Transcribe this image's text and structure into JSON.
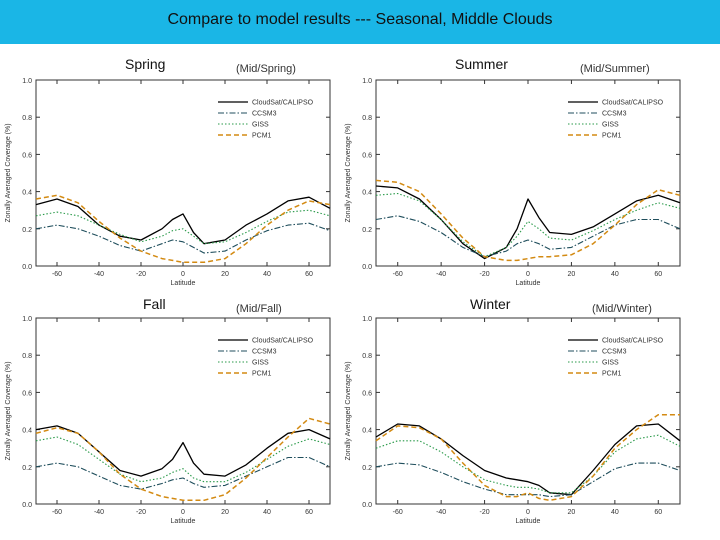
{
  "title": "Compare to model results --- Seasonal, Middle Clouds",
  "colors": {
    "titlebar": "#1ab6e6",
    "CloudSat/CALIPSO": "#000000",
    "CCSM3": "#1f4e5c",
    "GISS": "#2a9a4a",
    "PCM1": "#d38a12"
  },
  "chart_data": [
    {
      "type": "line",
      "season": "Spring",
      "panel_tag": "(Mid/Spring)",
      "xlabel": "Latitude",
      "ylabel": "Zonally Averaged Coverage (%)",
      "xlim": [
        -70,
        70
      ],
      "ylim": [
        0,
        1.0
      ],
      "xticks": [
        -60,
        -40,
        -20,
        0,
        20,
        40,
        60
      ],
      "xtick_labels": [
        "-60",
        "-40",
        "-20",
        "0",
        "20",
        "40",
        "60"
      ],
      "yticks": [
        0,
        0.2,
        0.4,
        0.6,
        0.8,
        1.0
      ],
      "ytick_labels": [
        "0.0",
        "0.2",
        "0.4",
        "0.6",
        "0.8",
        "1.0"
      ],
      "legend": [
        "CloudSat/CALIPSO",
        "CCSM3",
        "GISS",
        "PCM1"
      ],
      "x": [
        -70,
        -60,
        -50,
        -40,
        -30,
        -20,
        -10,
        -5,
        0,
        5,
        10,
        20,
        30,
        40,
        50,
        60,
        70
      ],
      "series": [
        {
          "name": "CloudSat/CALIPSO",
          "style": "solid",
          "values": [
            0.33,
            0.36,
            0.32,
            0.22,
            0.16,
            0.14,
            0.2,
            0.25,
            0.28,
            0.18,
            0.12,
            0.14,
            0.22,
            0.28,
            0.35,
            0.37,
            0.31
          ]
        },
        {
          "name": "CCSM3",
          "style": "dashdot",
          "values": [
            0.2,
            0.22,
            0.2,
            0.16,
            0.11,
            0.08,
            0.12,
            0.14,
            0.13,
            0.1,
            0.07,
            0.08,
            0.14,
            0.19,
            0.22,
            0.23,
            0.19
          ]
        },
        {
          "name": "GISS",
          "style": "dotted",
          "values": [
            0.27,
            0.29,
            0.27,
            0.22,
            0.17,
            0.13,
            0.16,
            0.19,
            0.2,
            0.16,
            0.12,
            0.13,
            0.18,
            0.24,
            0.29,
            0.3,
            0.27
          ]
        },
        {
          "name": "PCM1",
          "style": "dashed",
          "values": [
            0.36,
            0.38,
            0.34,
            0.24,
            0.15,
            0.08,
            0.04,
            0.03,
            0.02,
            0.02,
            0.02,
            0.04,
            0.12,
            0.22,
            0.3,
            0.35,
            0.33
          ]
        }
      ]
    },
    {
      "type": "line",
      "season": "Summer",
      "panel_tag": "(Mid/Summer)",
      "xlabel": "Latitude",
      "ylabel": "Zonally Averaged Coverage (%)",
      "xlim": [
        -70,
        70
      ],
      "ylim": [
        0,
        1.0
      ],
      "xticks": [
        -60,
        -40,
        -20,
        0,
        20,
        40,
        60
      ],
      "xtick_labels": [
        "-60",
        "-40",
        "-20",
        "0",
        "20",
        "40",
        "60"
      ],
      "yticks": [
        0,
        0.2,
        0.4,
        0.6,
        0.8,
        1.0
      ],
      "ytick_labels": [
        "0.0",
        "0.2",
        "0.4",
        "0.6",
        "0.8",
        "1.0"
      ],
      "legend": [
        "CloudSat/CALIPSO",
        "CCSM3",
        "GISS",
        "PCM1"
      ],
      "x": [
        -70,
        -60,
        -50,
        -40,
        -30,
        -20,
        -10,
        -5,
        0,
        5,
        10,
        20,
        30,
        40,
        50,
        60,
        70
      ],
      "series": [
        {
          "name": "CloudSat/CALIPSO",
          "style": "solid",
          "values": [
            0.43,
            0.42,
            0.36,
            0.25,
            0.12,
            0.04,
            0.1,
            0.2,
            0.36,
            0.26,
            0.18,
            0.17,
            0.21,
            0.28,
            0.35,
            0.38,
            0.34
          ]
        },
        {
          "name": "CCSM3",
          "style": "dashdot",
          "values": [
            0.25,
            0.27,
            0.24,
            0.18,
            0.1,
            0.05,
            0.08,
            0.12,
            0.14,
            0.12,
            0.09,
            0.1,
            0.16,
            0.22,
            0.25,
            0.25,
            0.2
          ]
        },
        {
          "name": "GISS",
          "style": "dotted",
          "values": [
            0.38,
            0.39,
            0.35,
            0.25,
            0.13,
            0.05,
            0.1,
            0.16,
            0.24,
            0.2,
            0.15,
            0.14,
            0.19,
            0.25,
            0.3,
            0.34,
            0.31
          ]
        },
        {
          "name": "PCM1",
          "style": "dashed",
          "values": [
            0.46,
            0.45,
            0.4,
            0.28,
            0.15,
            0.05,
            0.03,
            0.03,
            0.04,
            0.05,
            0.05,
            0.06,
            0.12,
            0.22,
            0.33,
            0.41,
            0.38
          ]
        }
      ]
    },
    {
      "type": "line",
      "season": "Fall",
      "panel_tag": "(Mid/Fall)",
      "xlabel": "Latitude",
      "ylabel": "Zonally Averaged Coverage (%)",
      "xlim": [
        -70,
        70
      ],
      "ylim": [
        0,
        1.0
      ],
      "xticks": [
        -60,
        -40,
        -20,
        0,
        20,
        40,
        60
      ],
      "xtick_labels": [
        "-60",
        "-40",
        "-20",
        "0",
        "20",
        "40",
        "60"
      ],
      "yticks": [
        0,
        0.2,
        0.4,
        0.6,
        0.8,
        1.0
      ],
      "ytick_labels": [
        "0.0",
        "0.2",
        "0.4",
        "0.6",
        "0.8",
        "1.0"
      ],
      "legend": [
        "CloudSat/CALIPSO",
        "CCSM3",
        "GISS",
        "PCM1"
      ],
      "x": [
        -70,
        -60,
        -50,
        -40,
        -30,
        -20,
        -10,
        -5,
        0,
        5,
        10,
        20,
        30,
        40,
        50,
        60,
        70
      ],
      "series": [
        {
          "name": "CloudSat/CALIPSO",
          "style": "solid",
          "values": [
            0.4,
            0.42,
            0.38,
            0.28,
            0.18,
            0.15,
            0.19,
            0.24,
            0.33,
            0.22,
            0.16,
            0.15,
            0.21,
            0.3,
            0.38,
            0.4,
            0.35
          ]
        },
        {
          "name": "CCSM3",
          "style": "dashdot",
          "values": [
            0.2,
            0.22,
            0.2,
            0.15,
            0.1,
            0.08,
            0.11,
            0.13,
            0.14,
            0.11,
            0.09,
            0.1,
            0.15,
            0.2,
            0.25,
            0.25,
            0.2
          ]
        },
        {
          "name": "GISS",
          "style": "dotted",
          "values": [
            0.34,
            0.36,
            0.32,
            0.24,
            0.16,
            0.12,
            0.14,
            0.17,
            0.19,
            0.14,
            0.12,
            0.12,
            0.17,
            0.24,
            0.31,
            0.35,
            0.32
          ]
        },
        {
          "name": "PCM1",
          "style": "dashed",
          "values": [
            0.38,
            0.41,
            0.38,
            0.28,
            0.16,
            0.08,
            0.04,
            0.03,
            0.02,
            0.02,
            0.02,
            0.05,
            0.14,
            0.25,
            0.36,
            0.46,
            0.43
          ]
        }
      ]
    },
    {
      "type": "line",
      "season": "Winter",
      "panel_tag": "(Mid/Winter)",
      "xlabel": "Latitude",
      "ylabel": "Zonally Averaged Coverage (%)",
      "xlim": [
        -70,
        70
      ],
      "ylim": [
        0,
        1.0
      ],
      "xticks": [
        -60,
        -40,
        -20,
        0,
        20,
        40,
        60
      ],
      "xtick_labels": [
        "-60",
        "-40",
        "-20",
        "0",
        "20",
        "40",
        "60"
      ],
      "yticks": [
        0,
        0.2,
        0.4,
        0.6,
        0.8,
        1.0
      ],
      "ytick_labels": [
        "0.0",
        "0.2",
        "0.4",
        "0.6",
        "0.8",
        "1.0"
      ],
      "legend": [
        "CloudSat/CALIPSO",
        "CCSM3",
        "GISS",
        "PCM1"
      ],
      "x": [
        -70,
        -60,
        -50,
        -40,
        -30,
        -20,
        -10,
        -5,
        0,
        5,
        10,
        20,
        30,
        40,
        50,
        60,
        70
      ],
      "series": [
        {
          "name": "CloudSat/CALIPSO",
          "style": "solid",
          "values": [
            0.36,
            0.43,
            0.42,
            0.35,
            0.26,
            0.18,
            0.14,
            0.13,
            0.12,
            0.1,
            0.06,
            0.05,
            0.18,
            0.32,
            0.42,
            0.43,
            0.34
          ]
        },
        {
          "name": "CCSM3",
          "style": "dashdot",
          "values": [
            0.2,
            0.22,
            0.21,
            0.17,
            0.12,
            0.08,
            0.05,
            0.05,
            0.05,
            0.05,
            0.04,
            0.05,
            0.12,
            0.19,
            0.22,
            0.22,
            0.18
          ]
        },
        {
          "name": "GISS",
          "style": "dotted",
          "values": [
            0.3,
            0.34,
            0.34,
            0.28,
            0.2,
            0.13,
            0.1,
            0.09,
            0.09,
            0.08,
            0.06,
            0.06,
            0.15,
            0.28,
            0.35,
            0.37,
            0.31
          ]
        },
        {
          "name": "PCM1",
          "style": "dashed",
          "values": [
            0.34,
            0.42,
            0.41,
            0.35,
            0.22,
            0.1,
            0.04,
            0.04,
            0.06,
            0.03,
            0.02,
            0.04,
            0.15,
            0.3,
            0.4,
            0.48,
            0.48
          ]
        }
      ]
    }
  ]
}
